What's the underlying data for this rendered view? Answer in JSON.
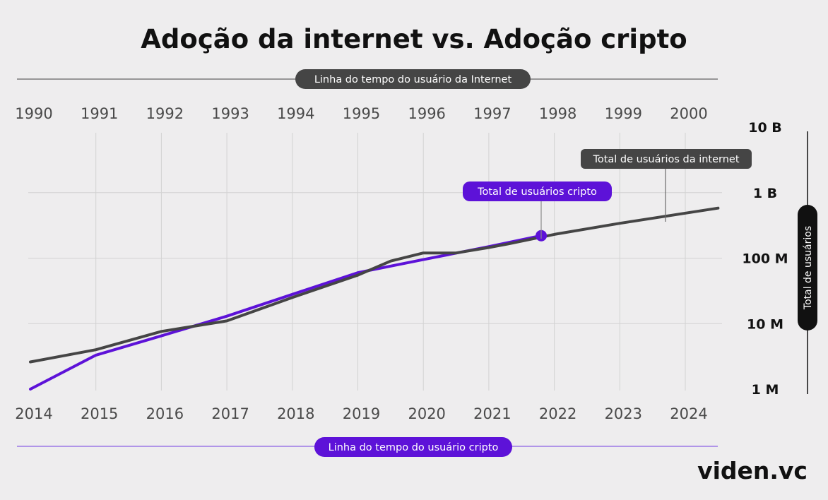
{
  "colors": {
    "background": "#eeedee",
    "internet": "#454545",
    "crypto": "#5d12d8",
    "crypto_light": "#9b78e6",
    "grid": "#d2d2d2",
    "text_dark": "#111111"
  },
  "chart_data": {
    "type": "line",
    "title": "Adoção da internet vs. Adoção cripto",
    "internet_axis": {
      "label": "Linha do tempo do usuário da Internet",
      "ticks": [
        "1990",
        "1991",
        "1992",
        "1993",
        "1994",
        "1995",
        "1996",
        "1997",
        "1998",
        "1999",
        "2000"
      ]
    },
    "crypto_axis": {
      "label": "Linha do tempo do usuário cripto",
      "ticks": [
        "2014",
        "2015",
        "2016",
        "2017",
        "2018",
        "2019",
        "2020",
        "2021",
        "2022",
        "2023",
        "2024"
      ]
    },
    "ylabel": "Total de usuários",
    "yscale": "log",
    "ylim": [
      1000000,
      10000000000
    ],
    "y_ticks": [
      {
        "value": 1000000,
        "label": "1 M"
      },
      {
        "value": 10000000,
        "label": "10 M"
      },
      {
        "value": 100000000,
        "label": "100 M"
      },
      {
        "value": 1000000000,
        "label": "1 B"
      },
      {
        "value": 10000000000,
        "label": "10 B"
      }
    ],
    "series": [
      {
        "name": "Total de usuários da internet",
        "axis": "internet",
        "points": [
          {
            "x": 1990.0,
            "y": 2600000
          },
          {
            "x": 1991.0,
            "y": 4000000
          },
          {
            "x": 1992.0,
            "y": 7600000
          },
          {
            "x": 1993.0,
            "y": 11000000
          },
          {
            "x": 1994.0,
            "y": 25000000
          },
          {
            "x": 1995.0,
            "y": 55000000
          },
          {
            "x": 1995.5,
            "y": 90000000
          },
          {
            "x": 1996.0,
            "y": 120000000
          },
          {
            "x": 1996.5,
            "y": 120000000
          },
          {
            "x": 1997.0,
            "y": 145000000
          },
          {
            "x": 1997.3,
            "y": 165000000
          },
          {
            "x": 1998.0,
            "y": 230000000
          },
          {
            "x": 1999.0,
            "y": 340000000
          },
          {
            "x": 2000.5,
            "y": 580000000
          }
        ]
      },
      {
        "name": "Total de usuários cripto",
        "axis": "crypto",
        "points": [
          {
            "x": 2014.0,
            "y": 1000000
          },
          {
            "x": 2015.0,
            "y": 3300000
          },
          {
            "x": 2016.0,
            "y": 6500000
          },
          {
            "x": 2017.0,
            "y": 13000000
          },
          {
            "x": 2018.0,
            "y": 28000000
          },
          {
            "x": 2019.0,
            "y": 60000000
          },
          {
            "x": 2020.0,
            "y": 95000000
          },
          {
            "x": 2021.0,
            "y": 150000000
          },
          {
            "x": 2021.8,
            "y": 220000000
          }
        ],
        "marker": {
          "x": 2021.8,
          "y": 220000000
        }
      }
    ],
    "annotations": {
      "internet_label": "Total de usuários da internet",
      "crypto_label": "Total de usuários cripto"
    }
  },
  "brand": {
    "logo": "viden.vc"
  }
}
